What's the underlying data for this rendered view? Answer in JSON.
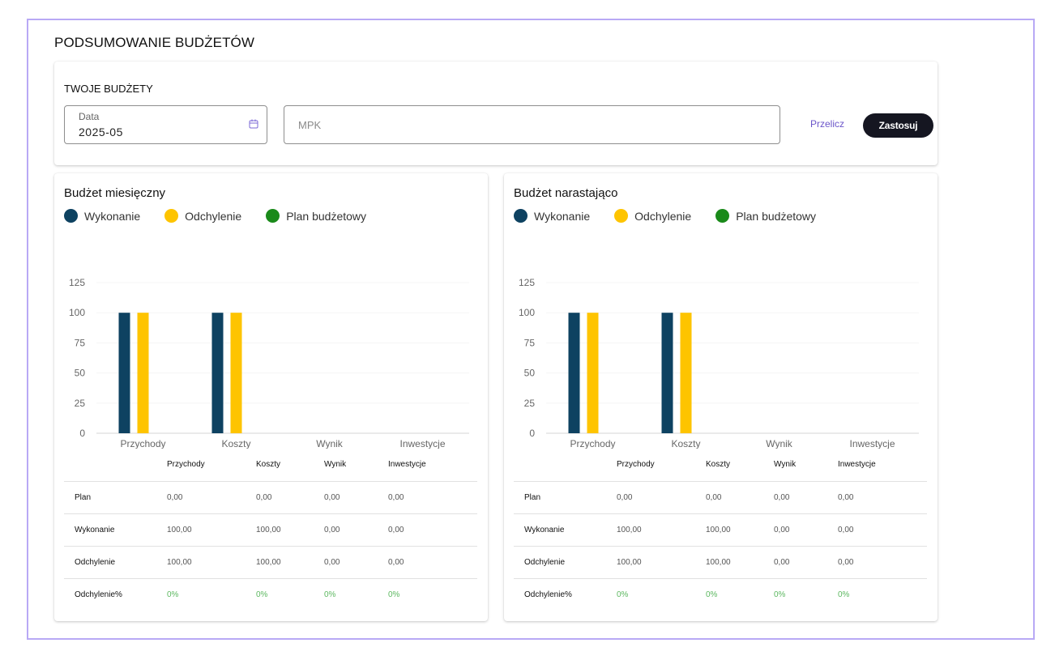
{
  "page_title": "PODSUMOWANIE BUDŻETÓW",
  "filters": {
    "title": "TWOJE BUDŻETY",
    "date_label": "Data",
    "date_value": "2025-05",
    "mpk_placeholder": "MPK",
    "mpk_value": "",
    "recalc_label": "Przelicz",
    "apply_label": "Zastosuj"
  },
  "colors": {
    "execution": "#0e4261",
    "deviation": "#fec400",
    "plan": "#1a8a1a",
    "accent": "#6b55c9",
    "percent_text": "#5cb860"
  },
  "legend": [
    {
      "label": "Wykonanie",
      "color": "#0e4261"
    },
    {
      "label": "Odchylenie",
      "color": "#fec400"
    },
    {
      "label": "Plan budżetowy",
      "color": "#1a8a1a"
    }
  ],
  "table_headers": [
    "",
    "Przychody",
    "Koszty",
    "Wynik",
    "Inwestycje"
  ],
  "panels": [
    {
      "title": "Budżet miesięczny",
      "chart_data": {
        "type": "bar",
        "categories": [
          "Przychody",
          "Koszty",
          "Wynik",
          "Inwestycje"
        ],
        "series": [
          {
            "name": "Wykonanie",
            "values": [
              100,
              100,
              0,
              0
            ]
          },
          {
            "name": "Odchylenie",
            "values": [
              100,
              100,
              0,
              0
            ]
          },
          {
            "name": "Plan budżetowy",
            "values": [
              0,
              0,
              0,
              0
            ]
          }
        ],
        "yticks": [
          "0",
          "25",
          "50",
          "75",
          "100",
          "125"
        ],
        "ylim": [
          0,
          125
        ]
      },
      "rows": [
        {
          "label": "Plan",
          "values": [
            "0,00",
            "0,00",
            "0,00",
            "0,00"
          ]
        },
        {
          "label": "Wykonanie",
          "values": [
            "100,00",
            "100,00",
            "0,00",
            "0,00"
          ]
        },
        {
          "label": "Odchylenie",
          "values": [
            "100,00",
            "100,00",
            "0,00",
            "0,00"
          ]
        },
        {
          "label": "Odchylenie%",
          "values": [
            "0%",
            "0%",
            "0%",
            "0%"
          ]
        }
      ]
    },
    {
      "title": "Budżet narastająco",
      "chart_data": {
        "type": "bar",
        "categories": [
          "Przychody",
          "Koszty",
          "Wynik",
          "Inwestycje"
        ],
        "series": [
          {
            "name": "Wykonanie",
            "values": [
              100,
              100,
              0,
              0
            ]
          },
          {
            "name": "Odchylenie",
            "values": [
              100,
              100,
              0,
              0
            ]
          },
          {
            "name": "Plan budżetowy",
            "values": [
              0,
              0,
              0,
              0
            ]
          }
        ],
        "yticks": [
          "0",
          "25",
          "50",
          "75",
          "100",
          "125"
        ],
        "ylim": [
          0,
          125
        ]
      },
      "rows": [
        {
          "label": "Plan",
          "values": [
            "0,00",
            "0,00",
            "0,00",
            "0,00"
          ]
        },
        {
          "label": "Wykonanie",
          "values": [
            "100,00",
            "100,00",
            "0,00",
            "0,00"
          ]
        },
        {
          "label": "Odchylenie",
          "values": [
            "100,00",
            "100,00",
            "0,00",
            "0,00"
          ]
        },
        {
          "label": "Odchylenie%",
          "values": [
            "0%",
            "0%",
            "0%",
            "0%"
          ]
        }
      ]
    }
  ]
}
